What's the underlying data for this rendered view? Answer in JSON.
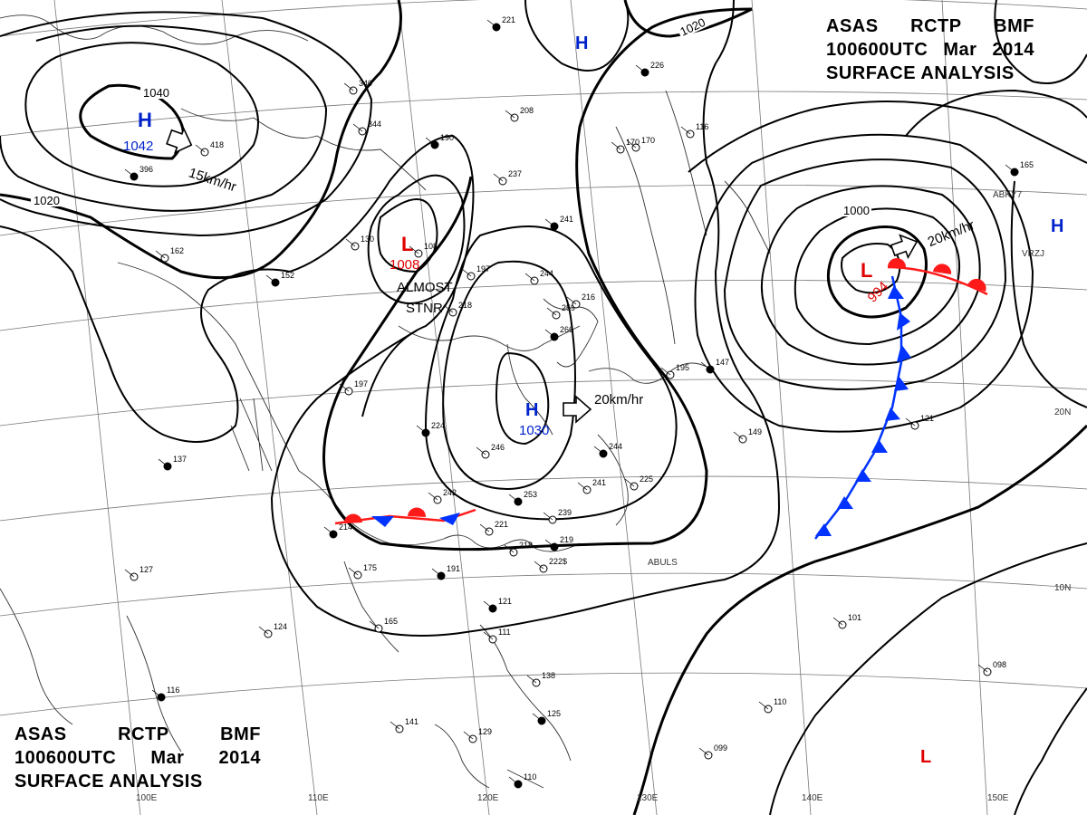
{
  "header": {
    "agency": "ASAS",
    "station": "RCTP",
    "office": "BMF",
    "time": "100600UTC",
    "month": "Mar",
    "year": "2014",
    "product": "SURFACE ANALYSIS"
  },
  "isobars": {
    "label_1040": "1040",
    "label_1020_west": "1020",
    "label_1020_north": "1020",
    "label_1000": "1000"
  },
  "systems": {
    "high_nw": {
      "symbol": "H",
      "pressure": "1042"
    },
    "high_ne": {
      "symbol": "H"
    },
    "high_center": {
      "symbol": "H",
      "pressure": "1030"
    },
    "high_top": {
      "symbol": "H"
    },
    "low_center": {
      "symbol": "L",
      "pressure": "1008"
    },
    "low_east": {
      "symbol": "L",
      "pressure": "994"
    },
    "low_se": {
      "symbol": "L"
    }
  },
  "motion": {
    "high_nw": "15km/hr",
    "high_center": "20km/hr",
    "low_east": "20km/hr",
    "stationary_line1": "ALMOST",
    "stationary_line2": "STNR"
  },
  "longitudes": [
    "100E",
    "110E",
    "120E",
    "130E",
    "140E",
    "150E"
  ],
  "latitudes": [
    "20N",
    "10N"
  ],
  "station_labels": {
    "abuls": "ABULS",
    "abky7": "ABKY7",
    "vrzj": "VRZJ"
  },
  "station_values": [
    "221",
    "208",
    "237",
    "241",
    "244",
    "197",
    "190",
    "130",
    "108",
    "152",
    "218",
    "197",
    "224",
    "246",
    "242",
    "253",
    "221",
    "218",
    "219",
    "239",
    "241",
    "244",
    "225",
    "195",
    "147",
    "149",
    "121",
    "165",
    "170",
    "175",
    "191",
    "165",
    "124",
    "121",
    "111",
    "138",
    "125",
    "129",
    "141",
    "110",
    "099",
    "110",
    "116",
    "098",
    "127",
    "137",
    "162",
    "418",
    "396",
    "344",
    "340",
    "226",
    "170",
    "116",
    "266",
    "259",
    "216",
    "214",
    "222$",
    "101"
  ],
  "colors": {
    "isobar": "#000000",
    "high": "#0022cc",
    "low": "#e00000",
    "cold_front": "#0033ff",
    "warm_front": "#ff1a1a",
    "grid": "#555555",
    "coast": "#222222"
  }
}
